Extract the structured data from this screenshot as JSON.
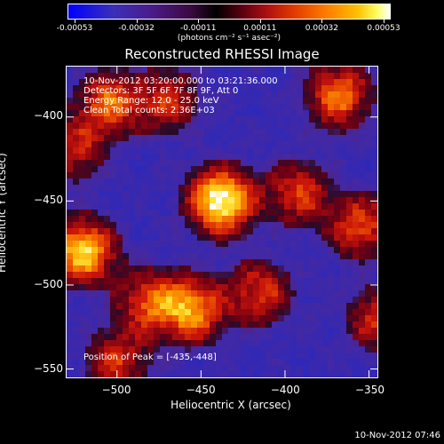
{
  "colorbar": {
    "tick_labels": [
      "-0.00053",
      "-0.00032",
      "-0.00011",
      "0.00011",
      "0.00032",
      "0.00053"
    ],
    "units": "(photons cm⁻² s⁻¹ asec⁻²)"
  },
  "chart_data": {
    "type": "heatmap",
    "title": "Reconstructed RHESSI Image",
    "xlabel": "Heliocentric X (arcsec)",
    "ylabel": "Heliocentric Y (arcsec)",
    "xlim": [
      -530,
      -345
    ],
    "ylim": [
      -555,
      -370
    ],
    "x_ticks": [
      -500,
      -450,
      -400,
      -350
    ],
    "y_ticks": [
      -400,
      -450,
      -500,
      -550
    ],
    "x_tick_labels": [
      "−500",
      "−450",
      "−400",
      "−350"
    ],
    "y_tick_labels": [
      "−400",
      "−450",
      "−500",
      "−550"
    ],
    "color_range": [
      -0.00053,
      0.00053
    ],
    "annotations": [
      "10-Nov-2012 03:20:00.000 to 03:21:36.000",
      "Detectors: 3F 5F 6F 7F 8F 9F, Att 0",
      "Energy Range: 12.0 - 25.0 keV",
      "Clean    Total counts: 2.36E+03"
    ],
    "peak_label": "Position of Peak = [-435,-448]",
    "peak_position": [
      -435,
      -448
    ],
    "sources": [
      {
        "x": -438,
        "y": -450,
        "intensity": 1.0
      },
      {
        "x": -520,
        "y": -480,
        "intensity": 0.85
      },
      {
        "x": -505,
        "y": -392,
        "intensity": 0.6
      },
      {
        "x": -368,
        "y": -387,
        "intensity": 0.65
      },
      {
        "x": -470,
        "y": -390,
        "intensity": 0.45
      },
      {
        "x": -355,
        "y": -465,
        "intensity": 0.55
      },
      {
        "x": -392,
        "y": -445,
        "intensity": 0.5
      },
      {
        "x": -455,
        "y": -515,
        "intensity": 0.7
      },
      {
        "x": -480,
        "y": -510,
        "intensity": 0.55
      },
      {
        "x": -415,
        "y": -505,
        "intensity": 0.5
      },
      {
        "x": -345,
        "y": -520,
        "intensity": 0.45
      },
      {
        "x": -500,
        "y": -545,
        "intensity": 0.45
      },
      {
        "x": -525,
        "y": -420,
        "intensity": 0.4
      }
    ]
  },
  "footer": "10-Nov-2012 07:46"
}
